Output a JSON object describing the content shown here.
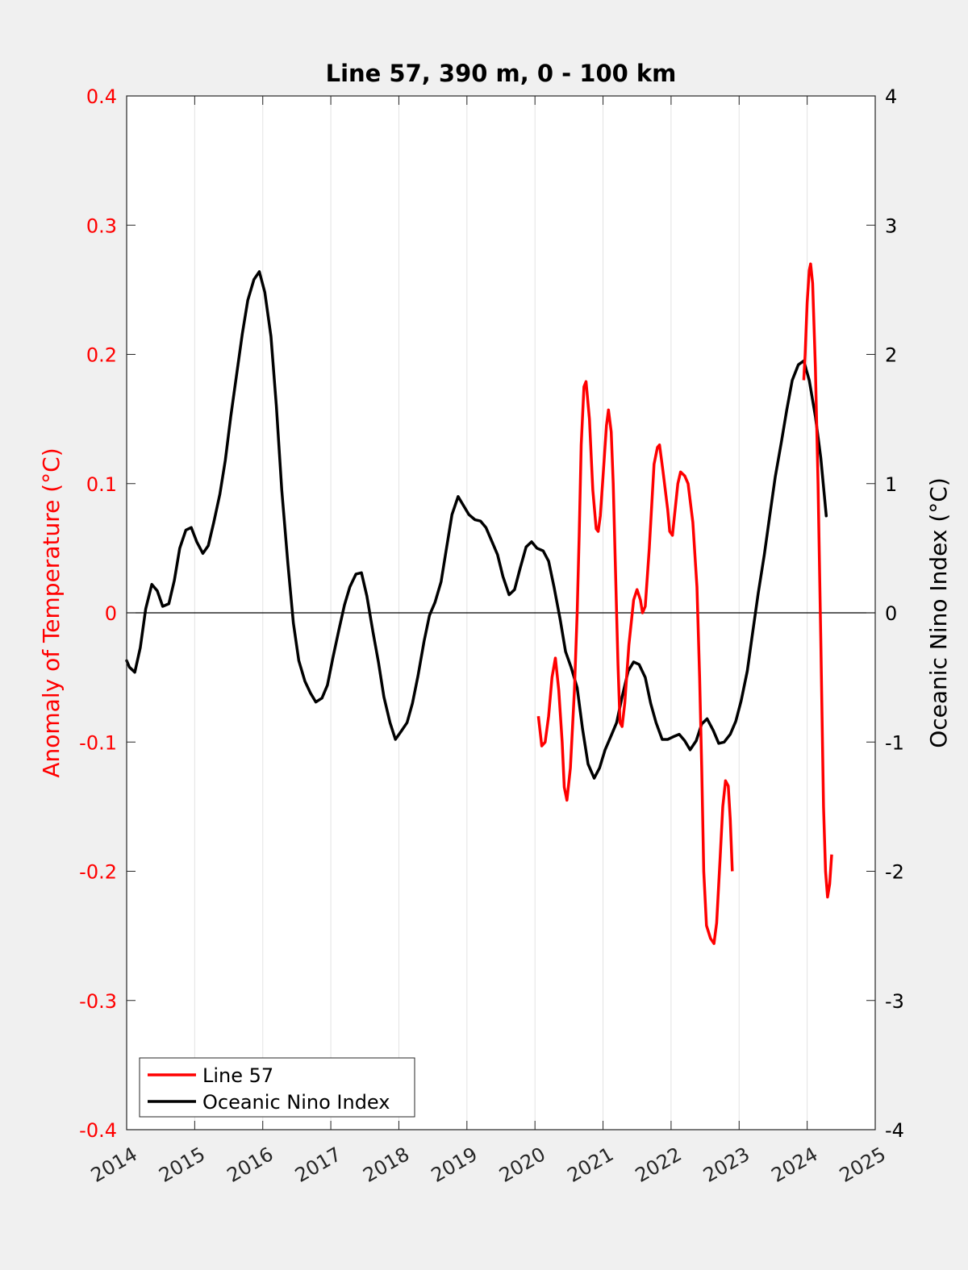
{
  "chart_data": {
    "type": "line",
    "title": "Line 57, 390 m, 0 - 100 km",
    "xlabel": "",
    "ylabel_left": "Anomaly of Temperature (°C)",
    "ylabel_right": "Oceanic Nino Index (°C)",
    "xlim": [
      2014,
      2025
    ],
    "ylim_left": [
      -0.4,
      0.4
    ],
    "ylim_right": [
      -4,
      4
    ],
    "x_ticks": [
      "2014",
      "2015",
      "2016",
      "2017",
      "2018",
      "2019",
      "2020",
      "2021",
      "2022",
      "2023",
      "2024",
      "2025"
    ],
    "y_ticks_left": [
      "-0.4",
      "-0.3",
      "-0.2",
      "-0.1",
      "0",
      "0.1",
      "0.2",
      "0.3",
      "0.4"
    ],
    "y_ticks_right": [
      "-4",
      "-3",
      "-2",
      "-1",
      "0",
      "1",
      "2",
      "3",
      "4"
    ],
    "grid": "vertical",
    "legend_position": "bottom-left",
    "colors": {
      "line57": "#ff0000",
      "oni": "#000000",
      "left_axis": "#ff0000",
      "right_axis": "#000000"
    },
    "series": [
      {
        "name": "Line 57",
        "axis": "left",
        "color": "#ff0000",
        "segments": [
          [
            [
              2020.05,
              -0.08
            ],
            [
              2020.1,
              -0.103
            ],
            [
              2020.15,
              -0.1
            ],
            [
              2020.2,
              -0.08
            ],
            [
              2020.25,
              -0.05
            ],
            [
              2020.3,
              -0.035
            ],
            [
              2020.35,
              -0.06
            ],
            [
              2020.4,
              -0.1
            ],
            [
              2020.43,
              -0.135
            ],
            [
              2020.47,
              -0.145
            ],
            [
              2020.52,
              -0.12
            ],
            [
              2020.58,
              -0.06
            ],
            [
              2020.62,
              0.0
            ],
            [
              2020.65,
              0.06
            ],
            [
              2020.68,
              0.13
            ],
            [
              2020.72,
              0.175
            ],
            [
              2020.75,
              0.179
            ],
            [
              2020.8,
              0.15
            ],
            [
              2020.85,
              0.095
            ],
            [
              2020.9,
              0.065
            ],
            [
              2020.93,
              0.063
            ],
            [
              2020.96,
              0.075
            ],
            [
              2021.0,
              0.105
            ],
            [
              2021.05,
              0.145
            ],
            [
              2021.08,
              0.157
            ],
            [
              2021.12,
              0.14
            ],
            [
              2021.15,
              0.1
            ],
            [
              2021.18,
              0.04
            ],
            [
              2021.22,
              -0.04
            ],
            [
              2021.25,
              -0.085
            ],
            [
              2021.28,
              -0.088
            ],
            [
              2021.32,
              -0.07
            ],
            [
              2021.38,
              -0.025
            ],
            [
              2021.45,
              0.01
            ],
            [
              2021.5,
              0.018
            ],
            [
              2021.55,
              0.01
            ],
            [
              2021.58,
              0.0
            ],
            [
              2021.62,
              0.005
            ],
            [
              2021.68,
              0.05
            ],
            [
              2021.75,
              0.115
            ],
            [
              2021.8,
              0.128
            ],
            [
              2021.83,
              0.13
            ],
            [
              2021.88,
              0.11
            ],
            [
              2021.95,
              0.08
            ],
            [
              2021.98,
              0.063
            ],
            [
              2022.02,
              0.06
            ],
            [
              2022.05,
              0.075
            ],
            [
              2022.1,
              0.1
            ],
            [
              2022.14,
              0.109
            ],
            [
              2022.2,
              0.106
            ],
            [
              2022.25,
              0.1
            ],
            [
              2022.32,
              0.07
            ],
            [
              2022.38,
              0.02
            ],
            [
              2022.42,
              -0.05
            ],
            [
              2022.45,
              -0.12
            ],
            [
              2022.48,
              -0.2
            ],
            [
              2022.52,
              -0.242
            ],
            [
              2022.58,
              -0.252
            ],
            [
              2022.63,
              -0.256
            ],
            [
              2022.67,
              -0.24
            ],
            [
              2022.72,
              -0.19
            ],
            [
              2022.76,
              -0.15
            ],
            [
              2022.8,
              -0.13
            ],
            [
              2022.84,
              -0.134
            ],
            [
              2022.87,
              -0.16
            ],
            [
              2022.9,
              -0.2
            ]
          ],
          [
            [
              2023.95,
              0.18
            ],
            [
              2023.97,
              0.2
            ],
            [
              2024.0,
              0.24
            ],
            [
              2024.03,
              0.265
            ],
            [
              2024.05,
              0.27
            ],
            [
              2024.08,
              0.255
            ],
            [
              2024.12,
              0.19
            ],
            [
              2024.16,
              0.1
            ],
            [
              2024.2,
              -0.02
            ],
            [
              2024.24,
              -0.15
            ],
            [
              2024.27,
              -0.2
            ],
            [
              2024.3,
              -0.22
            ],
            [
              2024.33,
              -0.21
            ],
            [
              2024.36,
              -0.187
            ]
          ]
        ]
      },
      {
        "name": "Oceanic Nino Index",
        "axis": "right",
        "color": "#000000",
        "points": [
          [
            2014.0,
            -0.37
          ],
          [
            2014.04,
            -0.42
          ],
          [
            2014.12,
            -0.46
          ],
          [
            2014.2,
            -0.27
          ],
          [
            2014.28,
            0.03
          ],
          [
            2014.37,
            0.22
          ],
          [
            2014.45,
            0.17
          ],
          [
            2014.53,
            0.05
          ],
          [
            2014.62,
            0.07
          ],
          [
            2014.7,
            0.25
          ],
          [
            2014.78,
            0.5
          ],
          [
            2014.87,
            0.64
          ],
          [
            2014.95,
            0.66
          ],
          [
            2015.03,
            0.55
          ],
          [
            2015.12,
            0.46
          ],
          [
            2015.2,
            0.52
          ],
          [
            2015.28,
            0.7
          ],
          [
            2015.37,
            0.92
          ],
          [
            2015.45,
            1.18
          ],
          [
            2015.53,
            1.52
          ],
          [
            2015.62,
            1.86
          ],
          [
            2015.7,
            2.16
          ],
          [
            2015.78,
            2.42
          ],
          [
            2015.87,
            2.58
          ],
          [
            2015.95,
            2.64
          ],
          [
            2016.03,
            2.48
          ],
          [
            2016.12,
            2.14
          ],
          [
            2016.2,
            1.6
          ],
          [
            2016.28,
            0.95
          ],
          [
            2016.37,
            0.38
          ],
          [
            2016.45,
            -0.08
          ],
          [
            2016.53,
            -0.37
          ],
          [
            2016.62,
            -0.53
          ],
          [
            2016.7,
            -0.62
          ],
          [
            2016.78,
            -0.69
          ],
          [
            2016.87,
            -0.66
          ],
          [
            2016.95,
            -0.56
          ],
          [
            2017.03,
            -0.35
          ],
          [
            2017.12,
            -0.13
          ],
          [
            2017.2,
            0.06
          ],
          [
            2017.28,
            0.2
          ],
          [
            2017.37,
            0.3
          ],
          [
            2017.45,
            0.31
          ],
          [
            2017.53,
            0.13
          ],
          [
            2017.62,
            -0.15
          ],
          [
            2017.7,
            -0.38
          ],
          [
            2017.78,
            -0.65
          ],
          [
            2017.87,
            -0.85
          ],
          [
            2017.95,
            -0.98
          ],
          [
            2018.03,
            -0.92
          ],
          [
            2018.12,
            -0.85
          ],
          [
            2018.2,
            -0.7
          ],
          [
            2018.28,
            -0.49
          ],
          [
            2018.37,
            -0.22
          ],
          [
            2018.45,
            -0.02
          ],
          [
            2018.53,
            0.08
          ],
          [
            2018.62,
            0.24
          ],
          [
            2018.7,
            0.5
          ],
          [
            2018.78,
            0.76
          ],
          [
            2018.87,
            0.9
          ],
          [
            2018.95,
            0.83
          ],
          [
            2019.03,
            0.76
          ],
          [
            2019.12,
            0.72
          ],
          [
            2019.2,
            0.71
          ],
          [
            2019.28,
            0.66
          ],
          [
            2019.37,
            0.55
          ],
          [
            2019.45,
            0.45
          ],
          [
            2019.53,
            0.28
          ],
          [
            2019.62,
            0.14
          ],
          [
            2019.7,
            0.18
          ],
          [
            2019.78,
            0.34
          ],
          [
            2019.87,
            0.51
          ],
          [
            2019.95,
            0.55
          ],
          [
            2020.03,
            0.5
          ],
          [
            2020.12,
            0.48
          ],
          [
            2020.2,
            0.4
          ],
          [
            2020.28,
            0.2
          ],
          [
            2020.37,
            -0.05
          ],
          [
            2020.45,
            -0.3
          ],
          [
            2020.53,
            -0.42
          ],
          [
            2020.62,
            -0.58
          ],
          [
            2020.7,
            -0.9
          ],
          [
            2020.78,
            -1.17
          ],
          [
            2020.87,
            -1.28
          ],
          [
            2020.95,
            -1.2
          ],
          [
            2021.03,
            -1.06
          ],
          [
            2021.12,
            -0.95
          ],
          [
            2021.2,
            -0.85
          ],
          [
            2021.28,
            -0.65
          ],
          [
            2021.37,
            -0.45
          ],
          [
            2021.45,
            -0.38
          ],
          [
            2021.53,
            -0.4
          ],
          [
            2021.62,
            -0.5
          ],
          [
            2021.7,
            -0.7
          ],
          [
            2021.78,
            -0.85
          ],
          [
            2021.87,
            -0.98
          ],
          [
            2021.95,
            -0.98
          ],
          [
            2022.03,
            -0.96
          ],
          [
            2022.12,
            -0.94
          ],
          [
            2022.2,
            -0.99
          ],
          [
            2022.28,
            -1.06
          ],
          [
            2022.37,
            -0.99
          ],
          [
            2022.45,
            -0.86
          ],
          [
            2022.53,
            -0.82
          ],
          [
            2022.62,
            -0.91
          ],
          [
            2022.7,
            -1.01
          ],
          [
            2022.78,
            -1.0
          ],
          [
            2022.87,
            -0.94
          ],
          [
            2022.95,
            -0.84
          ],
          [
            2023.03,
            -0.68
          ],
          [
            2023.12,
            -0.45
          ],
          [
            2023.2,
            -0.15
          ],
          [
            2023.28,
            0.15
          ],
          [
            2023.37,
            0.45
          ],
          [
            2023.45,
            0.75
          ],
          [
            2023.53,
            1.05
          ],
          [
            2023.62,
            1.32
          ],
          [
            2023.7,
            1.57
          ],
          [
            2023.78,
            1.8
          ],
          [
            2023.87,
            1.92
          ],
          [
            2023.95,
            1.95
          ],
          [
            2024.03,
            1.8
          ],
          [
            2024.12,
            1.52
          ],
          [
            2024.2,
            1.2
          ],
          [
            2024.28,
            0.75
          ]
        ]
      }
    ]
  }
}
